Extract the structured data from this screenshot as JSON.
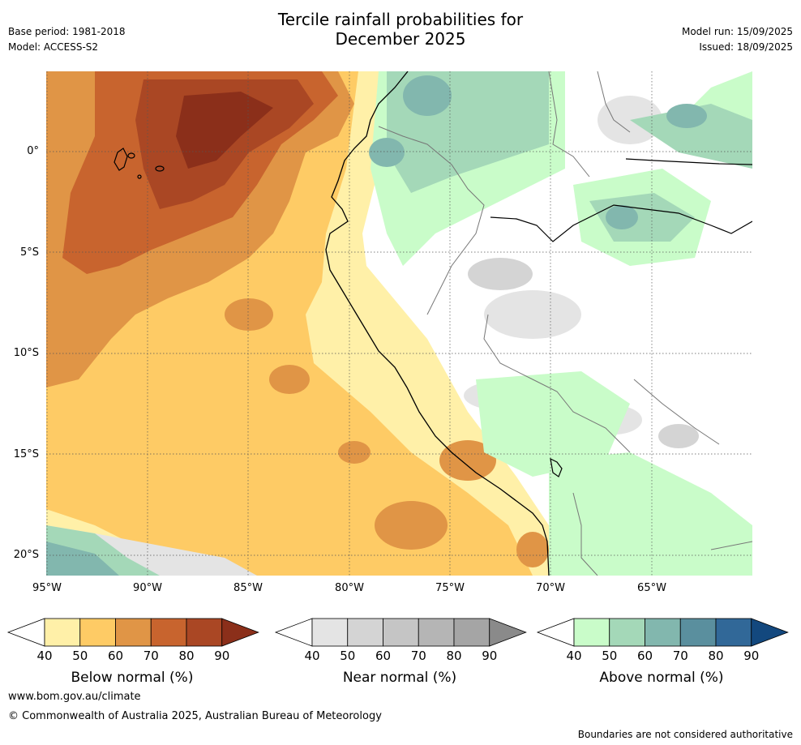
{
  "title": {
    "line1": "Tercile rainfall probabilities for",
    "line2": "December 2025"
  },
  "meta": {
    "base_period": "Base period: 1981-2018",
    "model": "Model: ACCESS-S2",
    "model_run": "Model run: 15/09/2025",
    "issued": "Issued: 18/09/2025"
  },
  "map": {
    "lat_labels": [
      "0°",
      "5°S",
      "10°S",
      "15°S",
      "20°S"
    ],
    "lon_labels": [
      "95°W",
      "90°W",
      "85°W",
      "80°W",
      "75°W",
      "70°W",
      "65°W"
    ]
  },
  "colorbars": [
    {
      "label": "Below normal (%)",
      "ticks": [
        "40",
        "50",
        "60",
        "70",
        "80",
        "90"
      ],
      "colors": [
        "#fff0a8",
        "#fecb65",
        "#e09546",
        "#c8642e",
        "#aa4724",
        "#8b2f1a"
      ]
    },
    {
      "label": "Near normal (%)",
      "ticks": [
        "40",
        "50",
        "60",
        "70",
        "80",
        "90"
      ],
      "colors": [
        "#e4e4e4",
        "#d4d4d4",
        "#c5c5c5",
        "#b5b5b5",
        "#a5a5a5",
        "#8a8a8a"
      ]
    },
    {
      "label": "Above normal (%)",
      "ticks": [
        "40",
        "50",
        "60",
        "70",
        "80",
        "90"
      ],
      "colors": [
        "#c9fcc9",
        "#a4d8b8",
        "#82b7ae",
        "#5a8f9e",
        "#316898",
        "#13487e"
      ]
    }
  ],
  "footer": {
    "website": "www.bom.gov.au/climate",
    "copyright": "© Commonwealth of Australia 2025, Australian Bureau of Meteorology",
    "disclaimer": "Boundaries are not considered authoritative"
  }
}
